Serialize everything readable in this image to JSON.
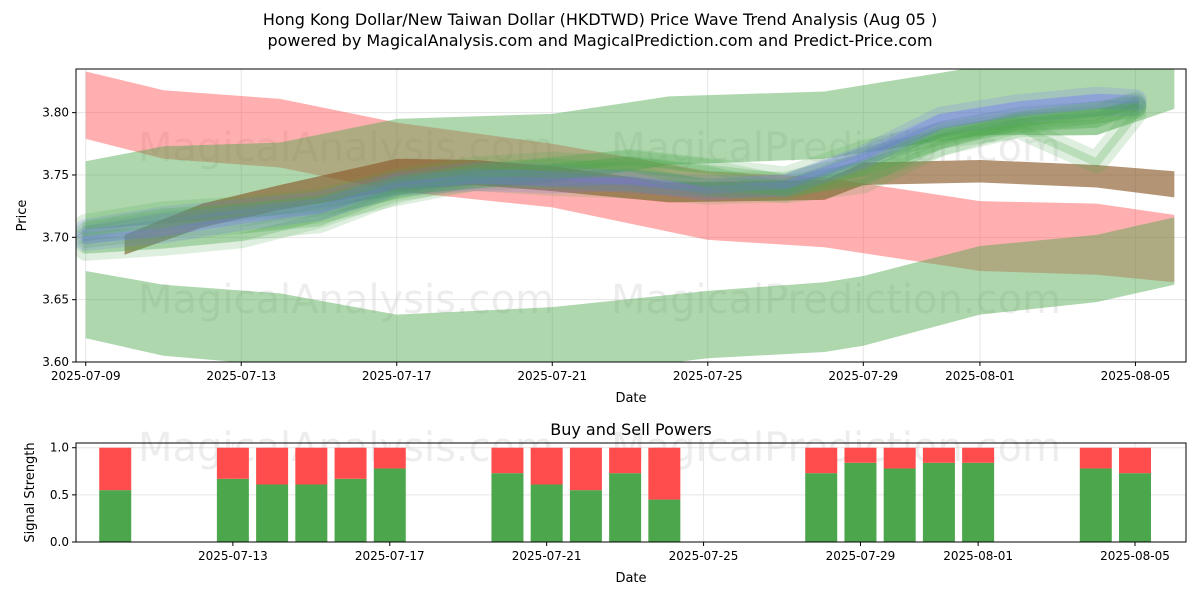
{
  "title_line1": "Hong Kong Dollar/New Taiwan Dollar (HKDTWD) Price Wave Trend Analysis (Aug 05 )",
  "title_line2": "powered by MagicalAnalysis.com and MagicalPrediction.com and Predict-Price.com",
  "watermarks": [
    "MagicalAnalysis.com",
    "MagicalPrediction.com"
  ],
  "colors": {
    "red": "#ff4d4d",
    "green": "#4ca64c",
    "blue": "#6f6fff",
    "brown": "#8b5a2b",
    "grid": "#e5e5e5"
  },
  "chart_data": [
    {
      "type": "area",
      "title": "",
      "xlabel": "Date",
      "ylabel": "Price",
      "x_ticks": [
        "2025-07-09",
        "2025-07-13",
        "2025-07-17",
        "2025-07-21",
        "2025-07-25",
        "2025-07-29",
        "2025-08-01",
        "2025-08-05"
      ],
      "y_ticks": [
        "3.60",
        "3.65",
        "3.70",
        "3.75",
        "3.80"
      ],
      "ylim": [
        3.6,
        3.835
      ],
      "xlim": [
        "2025-07-08.75",
        "2025-08-06.3"
      ],
      "grid": true,
      "bands": [
        {
          "color": "red",
          "x": [
            "2025-07-09",
            "2025-07-11",
            "2025-07-14",
            "2025-07-17",
            "2025-07-21",
            "2025-07-25",
            "2025-07-28",
            "2025-08-01",
            "2025-08-04",
            "2025-08-06"
          ],
          "upper": [
            3.833,
            3.818,
            3.811,
            3.792,
            3.775,
            3.753,
            3.748,
            3.729,
            3.727,
            3.718
          ],
          "lower": [
            3.779,
            3.763,
            3.756,
            3.737,
            3.724,
            3.698,
            3.692,
            3.673,
            3.67,
            3.664
          ]
        },
        {
          "color": "green",
          "x": [
            "2025-07-09",
            "2025-07-11",
            "2025-07-14",
            "2025-07-17",
            "2025-07-21",
            "2025-07-24",
            "2025-07-28",
            "2025-08-01",
            "2025-08-04",
            "2025-08-06"
          ],
          "upper": [
            3.761,
            3.773,
            3.776,
            3.795,
            3.799,
            3.813,
            3.817,
            3.837,
            3.838,
            3.842
          ],
          "lower": [
            3.706,
            3.711,
            3.718,
            3.734,
            3.744,
            3.758,
            3.763,
            3.782,
            3.782,
            3.803
          ]
        },
        {
          "color": "green",
          "x": [
            "2025-07-09",
            "2025-07-11",
            "2025-07-14",
            "2025-07-17",
            "2025-07-21",
            "2025-07-25",
            "2025-07-28",
            "2025-07-29",
            "2025-08-01",
            "2025-08-04",
            "2025-08-06"
          ],
          "upper": [
            3.673,
            3.662,
            3.655,
            3.638,
            3.644,
            3.657,
            3.664,
            3.669,
            3.693,
            3.702,
            3.716
          ],
          "lower": [
            3.619,
            3.605,
            3.597,
            3.582,
            3.588,
            3.603,
            3.608,
            3.613,
            3.638,
            3.648,
            3.662
          ]
        },
        {
          "color": "brown",
          "x": [
            "2025-07-10",
            "2025-07-12",
            "2025-07-14",
            "2025-07-17",
            "2025-07-19",
            "2025-07-21",
            "2025-07-24",
            "2025-07-28",
            "2025-07-29",
            "2025-08-01",
            "2025-08-04",
            "2025-08-06"
          ],
          "upper": [
            3.702,
            3.727,
            3.742,
            3.763,
            3.762,
            3.757,
            3.744,
            3.746,
            3.76,
            3.762,
            3.758,
            3.753
          ],
          "lower": [
            3.686,
            3.708,
            3.722,
            3.738,
            3.742,
            3.737,
            3.728,
            3.73,
            3.742,
            3.744,
            3.74,
            3.732
          ]
        }
      ],
      "paths": [
        {
          "color": "green",
          "x": [
            "2025-07-09",
            "2025-07-11",
            "2025-07-13",
            "2025-07-15",
            "2025-07-17",
            "2025-07-19",
            "2025-07-21",
            "2025-07-23",
            "2025-07-25",
            "2025-07-27",
            "2025-07-29",
            "2025-07-31",
            "2025-08-02",
            "2025-08-04",
            "2025-08-05"
          ],
          "y": [
            3.703,
            3.712,
            3.718,
            3.724,
            3.74,
            3.748,
            3.755,
            3.762,
            3.755,
            3.748,
            3.769,
            3.783,
            3.792,
            3.797,
            3.808
          ]
        },
        {
          "color": "green",
          "x": [
            "2025-07-09",
            "2025-07-11",
            "2025-07-13",
            "2025-07-15",
            "2025-07-17",
            "2025-07-19",
            "2025-07-21",
            "2025-07-23",
            "2025-07-25",
            "2025-07-27",
            "2025-07-29",
            "2025-07-31",
            "2025-08-02",
            "2025-08-04",
            "2025-08-05"
          ],
          "y": [
            3.696,
            3.7,
            3.706,
            3.712,
            3.736,
            3.75,
            3.756,
            3.761,
            3.754,
            3.741,
            3.752,
            3.774,
            3.789,
            3.791,
            3.804
          ]
        },
        {
          "color": "blue",
          "x": [
            "2025-07-09",
            "2025-07-11",
            "2025-07-13",
            "2025-07-15",
            "2025-07-17",
            "2025-07-19",
            "2025-07-21",
            "2025-07-23",
            "2025-07-25",
            "2025-07-27",
            "2025-07-29",
            "2025-07-31",
            "2025-08-02",
            "2025-08-04",
            "2025-08-05"
          ],
          "y": [
            3.706,
            3.716,
            3.722,
            3.728,
            3.744,
            3.752,
            3.75,
            3.744,
            3.741,
            3.741,
            3.763,
            3.79,
            3.8,
            3.806,
            3.806
          ]
        },
        {
          "color": "green",
          "x": [
            "2025-07-09",
            "2025-07-11",
            "2025-07-13",
            "2025-07-15",
            "2025-07-17",
            "2025-07-19",
            "2025-07-21",
            "2025-07-23",
            "2025-07-25",
            "2025-07-27",
            "2025-07-29",
            "2025-07-31",
            "2025-08-02",
            "2025-08-04",
            "2025-08-05"
          ],
          "y": [
            3.69,
            3.694,
            3.7,
            3.716,
            3.738,
            3.746,
            3.742,
            3.74,
            3.735,
            3.737,
            3.76,
            3.784,
            3.796,
            3.8,
            3.804
          ]
        },
        {
          "color": "green",
          "x": [
            "2025-07-09",
            "2025-07-11",
            "2025-07-13",
            "2025-07-15",
            "2025-07-17",
            "2025-07-19",
            "2025-07-21",
            "2025-07-23",
            "2025-07-25",
            "2025-07-27",
            "2025-07-29",
            "2025-07-31",
            "2025-08-02",
            "2025-08-04",
            "2025-08-05"
          ],
          "y": [
            3.7,
            3.708,
            3.712,
            3.72,
            3.734,
            3.746,
            3.749,
            3.752,
            3.744,
            3.744,
            3.758,
            3.78,
            3.788,
            3.76,
            3.799
          ]
        },
        {
          "color": "blue",
          "x": [
            "2025-07-09",
            "2025-07-11",
            "2025-07-13",
            "2025-07-15",
            "2025-07-17",
            "2025-07-19",
            "2025-07-21",
            "2025-07-23",
            "2025-07-25",
            "2025-07-27",
            "2025-07-29",
            "2025-07-31",
            "2025-08-02",
            "2025-08-04",
            "2025-08-05"
          ],
          "y": [
            3.698,
            3.704,
            3.714,
            3.722,
            3.742,
            3.746,
            3.744,
            3.746,
            3.738,
            3.742,
            3.765,
            3.796,
            3.806,
            3.812,
            3.81
          ]
        },
        {
          "color": "green",
          "x": [
            "2025-07-09",
            "2025-07-11",
            "2025-07-13",
            "2025-07-15",
            "2025-07-17",
            "2025-07-19",
            "2025-07-21",
            "2025-07-23",
            "2025-07-25",
            "2025-07-27",
            "2025-07-29",
            "2025-07-31",
            "2025-08-02",
            "2025-08-04",
            "2025-08-05"
          ],
          "y": [
            3.71,
            3.72,
            3.724,
            3.73,
            3.746,
            3.756,
            3.76,
            3.756,
            3.742,
            3.736,
            3.744,
            3.774,
            3.792,
            3.8,
            3.806
          ]
        }
      ]
    },
    {
      "type": "bar",
      "title": "Buy and Sell Powers",
      "xlabel": "Date",
      "ylabel": "Signal Strength",
      "x_ticks": [
        "2025-07-13",
        "2025-07-17",
        "2025-07-21",
        "2025-07-25",
        "2025-07-29",
        "2025-08-01",
        "2025-08-05"
      ],
      "y_ticks": [
        "0.0",
        "0.5",
        "1.0"
      ],
      "ylim": [
        0,
        1.05
      ],
      "xlim": [
        "2025-07-09.0",
        "2025-08-06.3"
      ],
      "grid": true,
      "categories": [
        "2025-07-10",
        "2025-07-13",
        "2025-07-14",
        "2025-07-15",
        "2025-07-16",
        "2025-07-17",
        "2025-07-20",
        "2025-07-21",
        "2025-07-22",
        "2025-07-23",
        "2025-07-24",
        "2025-07-28",
        "2025-07-29",
        "2025-07-30",
        "2025-07-31",
        "2025-08-01",
        "2025-08-04",
        "2025-08-05"
      ],
      "series": [
        {
          "name": "buy",
          "color": "green",
          "values": [
            0.55,
            0.67,
            0.61,
            0.61,
            0.67,
            0.78,
            0.73,
            0.61,
            0.55,
            0.73,
            0.45,
            0.73,
            0.84,
            0.78,
            0.84,
            0.84,
            0.78,
            0.73
          ]
        },
        {
          "name": "sell",
          "color": "red",
          "values": [
            0.45,
            0.33,
            0.39,
            0.39,
            0.33,
            0.22,
            0.27,
            0.39,
            0.45,
            0.27,
            0.55,
            0.27,
            0.16,
            0.22,
            0.16,
            0.16,
            0.22,
            0.27
          ]
        }
      ]
    }
  ]
}
